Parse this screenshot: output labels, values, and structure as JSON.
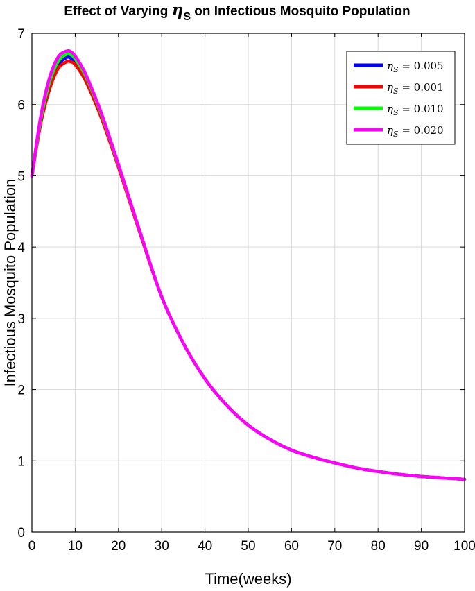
{
  "chart_data": {
    "type": "line",
    "title_prefix": "Effect of Varying ",
    "title_symbol": "η",
    "title_subscript": "S",
    "title_suffix": " on Infectious Mosquito Population",
    "xlabel": "Time(weeks)",
    "ylabel": "Infectious Mosquito Population",
    "xlim": [
      0,
      100
    ],
    "ylim": [
      0,
      7
    ],
    "xticks": [
      0,
      10,
      20,
      30,
      40,
      50,
      60,
      70,
      80,
      90,
      100
    ],
    "yticks": [
      0,
      1,
      2,
      3,
      4,
      5,
      6,
      7
    ],
    "grid": true,
    "legend_position": "top-right",
    "legend_symbol": "η",
    "legend_subscript": "S",
    "x": [
      0,
      2,
      4,
      6,
      8,
      9,
      10,
      12,
      14,
      16,
      18,
      20,
      25,
      30,
      35,
      40,
      45,
      50,
      55,
      60,
      65,
      70,
      75,
      80,
      85,
      90,
      95,
      100
    ],
    "series": [
      {
        "name": "0.005",
        "color": "#0000ff",
        "values": [
          5.0,
          5.75,
          6.25,
          6.55,
          6.66,
          6.65,
          6.6,
          6.42,
          6.15,
          5.85,
          5.5,
          5.14,
          4.2,
          3.3,
          2.65,
          2.15,
          1.78,
          1.5,
          1.3,
          1.15,
          1.05,
          0.97,
          0.9,
          0.85,
          0.81,
          0.78,
          0.76,
          0.74
        ]
      },
      {
        "name": "0.001",
        "color": "#ff0000",
        "values": [
          5.0,
          5.72,
          6.2,
          6.5,
          6.6,
          6.6,
          6.56,
          6.38,
          6.12,
          5.82,
          5.48,
          5.12,
          4.19,
          3.3,
          2.65,
          2.15,
          1.78,
          1.5,
          1.3,
          1.15,
          1.05,
          0.97,
          0.9,
          0.85,
          0.81,
          0.78,
          0.76,
          0.74
        ]
      },
      {
        "name": "0.010",
        "color": "#00ff00",
        "values": [
          5.0,
          5.78,
          6.3,
          6.6,
          6.71,
          6.7,
          6.64,
          6.45,
          6.18,
          5.87,
          5.52,
          5.15,
          4.21,
          3.3,
          2.65,
          2.15,
          1.78,
          1.5,
          1.3,
          1.15,
          1.05,
          0.97,
          0.9,
          0.85,
          0.81,
          0.78,
          0.76,
          0.74
        ]
      },
      {
        "name": "0.020",
        "color": "#ff00ff",
        "values": [
          5.0,
          5.82,
          6.36,
          6.66,
          6.75,
          6.74,
          6.68,
          6.48,
          6.2,
          5.89,
          5.53,
          5.16,
          4.21,
          3.3,
          2.65,
          2.15,
          1.78,
          1.5,
          1.3,
          1.15,
          1.05,
          0.97,
          0.9,
          0.85,
          0.81,
          0.78,
          0.76,
          0.74
        ]
      }
    ]
  }
}
